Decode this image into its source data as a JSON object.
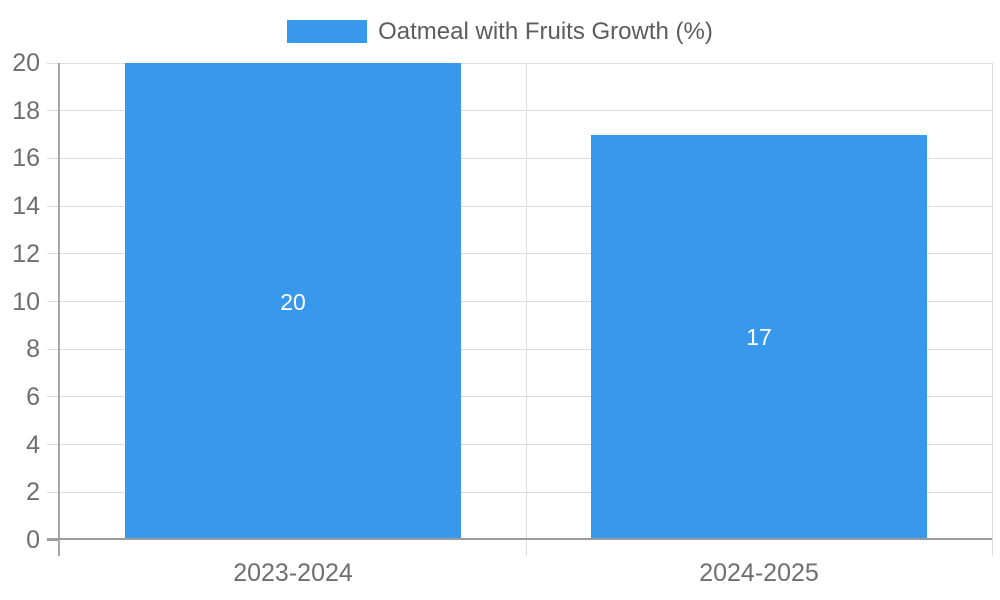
{
  "legend": {
    "label": "Oatmeal with Fruits Growth (%)"
  },
  "colors": {
    "bar": "#3898ec",
    "bar_label": "#ffffff",
    "grid": "#dcdcdc",
    "x_axis": "#9c9c9c",
    "y_axis": "#a6a6a6",
    "tick_text": "#6e6e6e",
    "legend_text": "#5c5c5c"
  },
  "chart_data": {
    "type": "bar",
    "title": "Oatmeal with Fruits Growth (%)",
    "categories": [
      "2023-2024",
      "2024-2025"
    ],
    "series": [
      {
        "name": "Oatmeal with Fruits Growth (%)",
        "values": [
          20,
          17
        ]
      }
    ],
    "xlabel": "",
    "ylabel": "",
    "ylim": [
      0,
      20
    ],
    "ytick_step": 2,
    "grid": true,
    "legend_position": "top",
    "bar_value_labels_inside": true
  }
}
